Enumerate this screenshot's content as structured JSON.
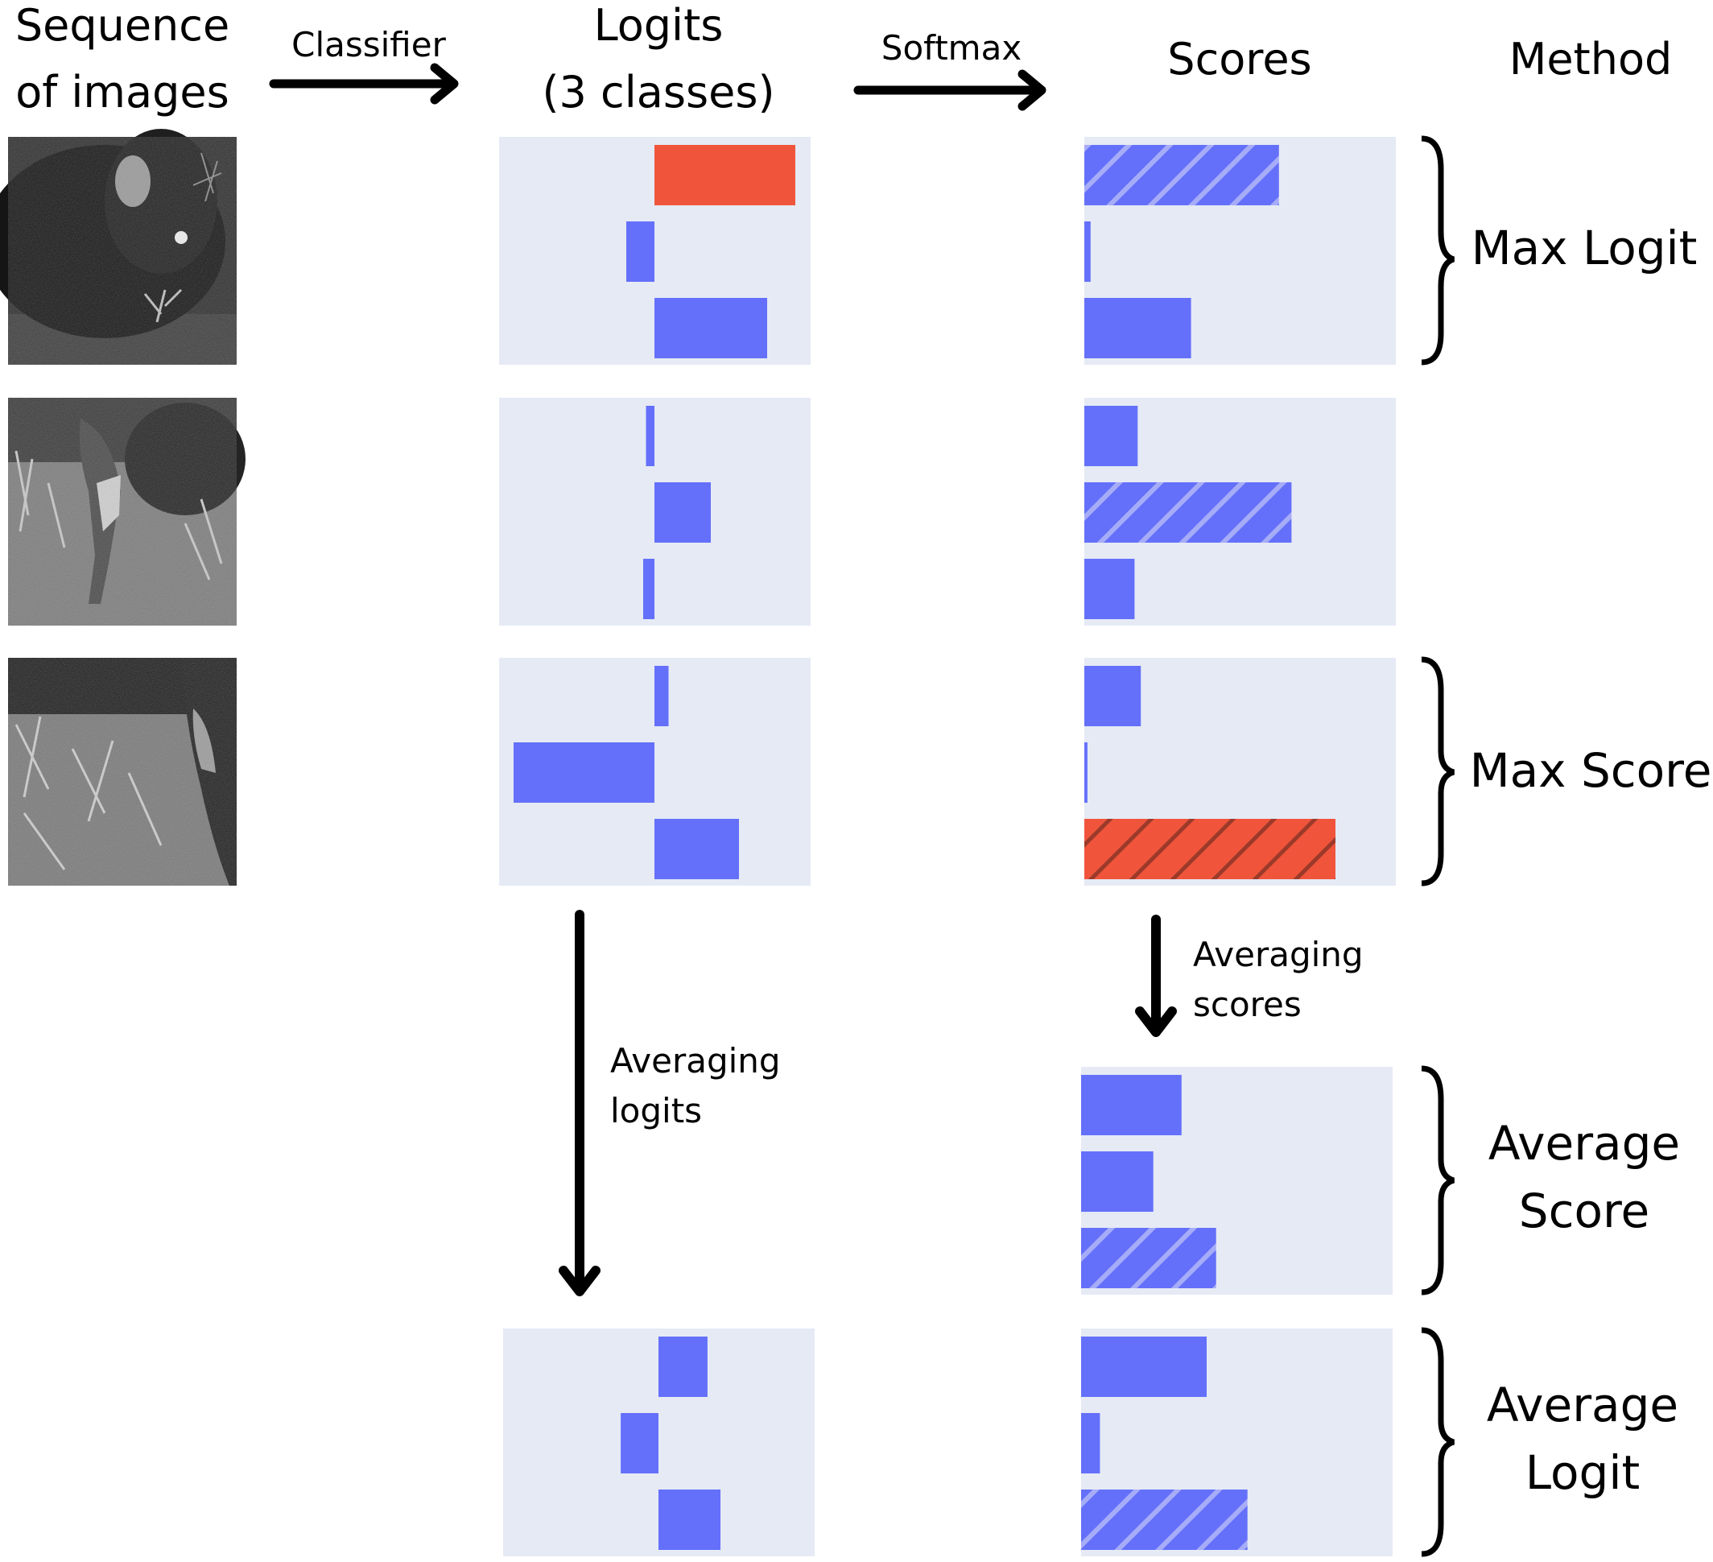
{
  "headers": {
    "sequence_line1": "Sequence",
    "sequence_line2": "of images",
    "classifier": "Classifier",
    "logits_line1": "Logits",
    "logits_line2": "(3 classes)",
    "softmax": "Softmax",
    "scores": "Scores",
    "method": "Method"
  },
  "annotations": {
    "averaging_logits_line1": "Averaging",
    "averaging_logits_line2": "logits",
    "averaging_scores_line1": "Averaging",
    "averaging_scores_line2": "scores"
  },
  "methods": {
    "max_logit": "Max Logit",
    "max_score": "Max Score",
    "average_score_line1": "Average",
    "average_score_line2": "Score",
    "average_logit_line1": "Average",
    "average_logit_line2": "Logit"
  },
  "colors": {
    "panel_bg": "#e5eaf5",
    "bar": "#6470fa",
    "highlight": "#f0553c",
    "hatch_on_blue": "#a6acf7",
    "hatch_on_red": "#9c3a2a"
  },
  "chart_data": [
    {
      "type": "bar",
      "name_hint": "frame-1-logits",
      "classes": 3,
      "values": [
        2.5,
        -0.5,
        2.0
      ],
      "highlight": [
        0
      ],
      "hatched": []
    },
    {
      "type": "bar",
      "name_hint": "frame-2-logits",
      "classes": 3,
      "values": [
        -0.15,
        1.0,
        -0.2
      ],
      "highlight": [],
      "hatched": []
    },
    {
      "type": "bar",
      "name_hint": "frame-3-logits",
      "classes": 3,
      "values": [
        0.25,
        -2.5,
        1.5
      ],
      "highlight": [],
      "hatched": []
    },
    {
      "type": "bar",
      "name_hint": "average-logits",
      "classes": 3,
      "values": [
        0.87,
        -0.67,
        1.1
      ],
      "highlight": [],
      "hatched": []
    },
    {
      "type": "bar",
      "name_hint": "frame-1-scores",
      "classes": 3,
      "values": [
        0.62,
        0.02,
        0.34
      ],
      "highlight": [],
      "hatched": [
        0
      ]
    },
    {
      "type": "bar",
      "name_hint": "frame-2-scores",
      "classes": 3,
      "values": [
        0.17,
        0.66,
        0.16
      ],
      "highlight": [],
      "hatched": [
        1
      ]
    },
    {
      "type": "bar",
      "name_hint": "frame-3-scores",
      "classes": 3,
      "values": [
        0.18,
        0.01,
        0.8
      ],
      "highlight": [
        2
      ],
      "hatched": [
        2
      ]
    },
    {
      "type": "bar",
      "name_hint": "average-scores",
      "classes": 3,
      "values": [
        0.32,
        0.23,
        0.43
      ],
      "highlight": [],
      "hatched": [
        2
      ]
    },
    {
      "type": "bar",
      "name_hint": "softmax-of-average-logits",
      "classes": 3,
      "values": [
        0.4,
        0.06,
        0.53
      ],
      "highlight": [],
      "hatched": [
        2
      ]
    }
  ]
}
